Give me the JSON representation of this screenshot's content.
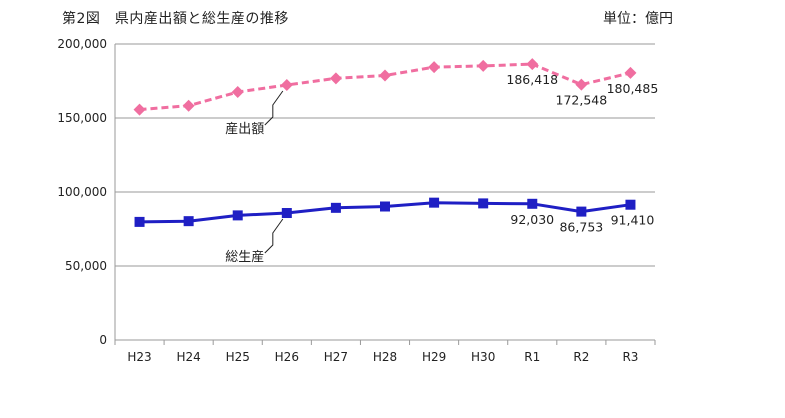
{
  "header": {
    "title": "第2図　県内産出額と総生産の推移",
    "unit": "単位：億円"
  },
  "chart_data": {
    "type": "line",
    "title": "第2図　県内産出額と総生産の推移",
    "unit_label": "単位：億円",
    "categories": [
      "H23",
      "H24",
      "H25",
      "H26",
      "H27",
      "H28",
      "H29",
      "H30",
      "R1",
      "R2",
      "R3"
    ],
    "ylim": [
      0,
      200000
    ],
    "yticks": [
      0,
      50000,
      100000,
      150000,
      200000
    ],
    "ytick_labels": [
      "0",
      "50,000",
      "100,000",
      "150,000",
      "200,000"
    ],
    "grid": true,
    "series": [
      {
        "name": "産出額",
        "color": "#f06ea0",
        "style": "dashed",
        "marker": "diamond",
        "values": [
          155700,
          158300,
          167600,
          172300,
          176800,
          178700,
          184400,
          185200,
          186418,
          172548,
          180485
        ],
        "data_labels": {
          "8": "186,418",
          "9": "172,548",
          "10": "180,485"
        }
      },
      {
        "name": "総生産",
        "color": "#1f1fc4",
        "style": "solid",
        "marker": "square",
        "values": [
          79800,
          80300,
          84200,
          85800,
          89300,
          90200,
          92800,
          92300,
          92030,
          86753,
          91410
        ],
        "data_labels": {
          "8": "92,030",
          "9": "86,753",
          "10": "91,410"
        }
      }
    ]
  }
}
